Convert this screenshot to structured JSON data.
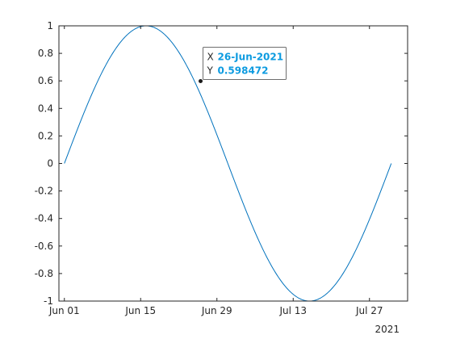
{
  "chart_data": {
    "type": "line",
    "title": "",
    "xlabel": "",
    "ylabel": "",
    "x_start": "2021-06-01",
    "x_end": "2021-07-31",
    "xlim": [
      "2021-05-31",
      "2021-08-03"
    ],
    "ylim": [
      -1,
      1
    ],
    "x_ticks": [
      {
        "date": "2021-06-01",
        "label": "Jun 01"
      },
      {
        "date": "2021-06-15",
        "label": "Jun 15"
      },
      {
        "date": "2021-06-29",
        "label": "Jun 29"
      },
      {
        "date": "2021-07-13",
        "label": "Jul 13"
      },
      {
        "date": "2021-07-27",
        "label": "Jul 27"
      }
    ],
    "x_secondary_label": "2021",
    "y_ticks": [
      {
        "value": 1,
        "label": "1"
      },
      {
        "value": 0.8,
        "label": "0.8"
      },
      {
        "value": 0.6,
        "label": "0.6"
      },
      {
        "value": 0.4,
        "label": "0.4"
      },
      {
        "value": 0.2,
        "label": "0.2"
      },
      {
        "value": 0,
        "label": "0"
      },
      {
        "value": -0.2,
        "label": "-0.2"
      },
      {
        "value": -0.4,
        "label": "-0.4"
      },
      {
        "value": -0.6,
        "label": "-0.6"
      },
      {
        "value": -0.8,
        "label": "-0.8"
      },
      {
        "value": -1,
        "label": "-1"
      }
    ],
    "grid": false,
    "series": [
      {
        "color": "#0072BD",
        "function": "sin",
        "period_days": 60
      }
    ],
    "datatip": {
      "date": "2021-06-26",
      "x_prefix": "X",
      "x_text": "26-Jun-2021",
      "y_prefix": "Y",
      "y_text": "0.598472",
      "y": 0.598472,
      "value_color": "#0D9BE0"
    }
  }
}
